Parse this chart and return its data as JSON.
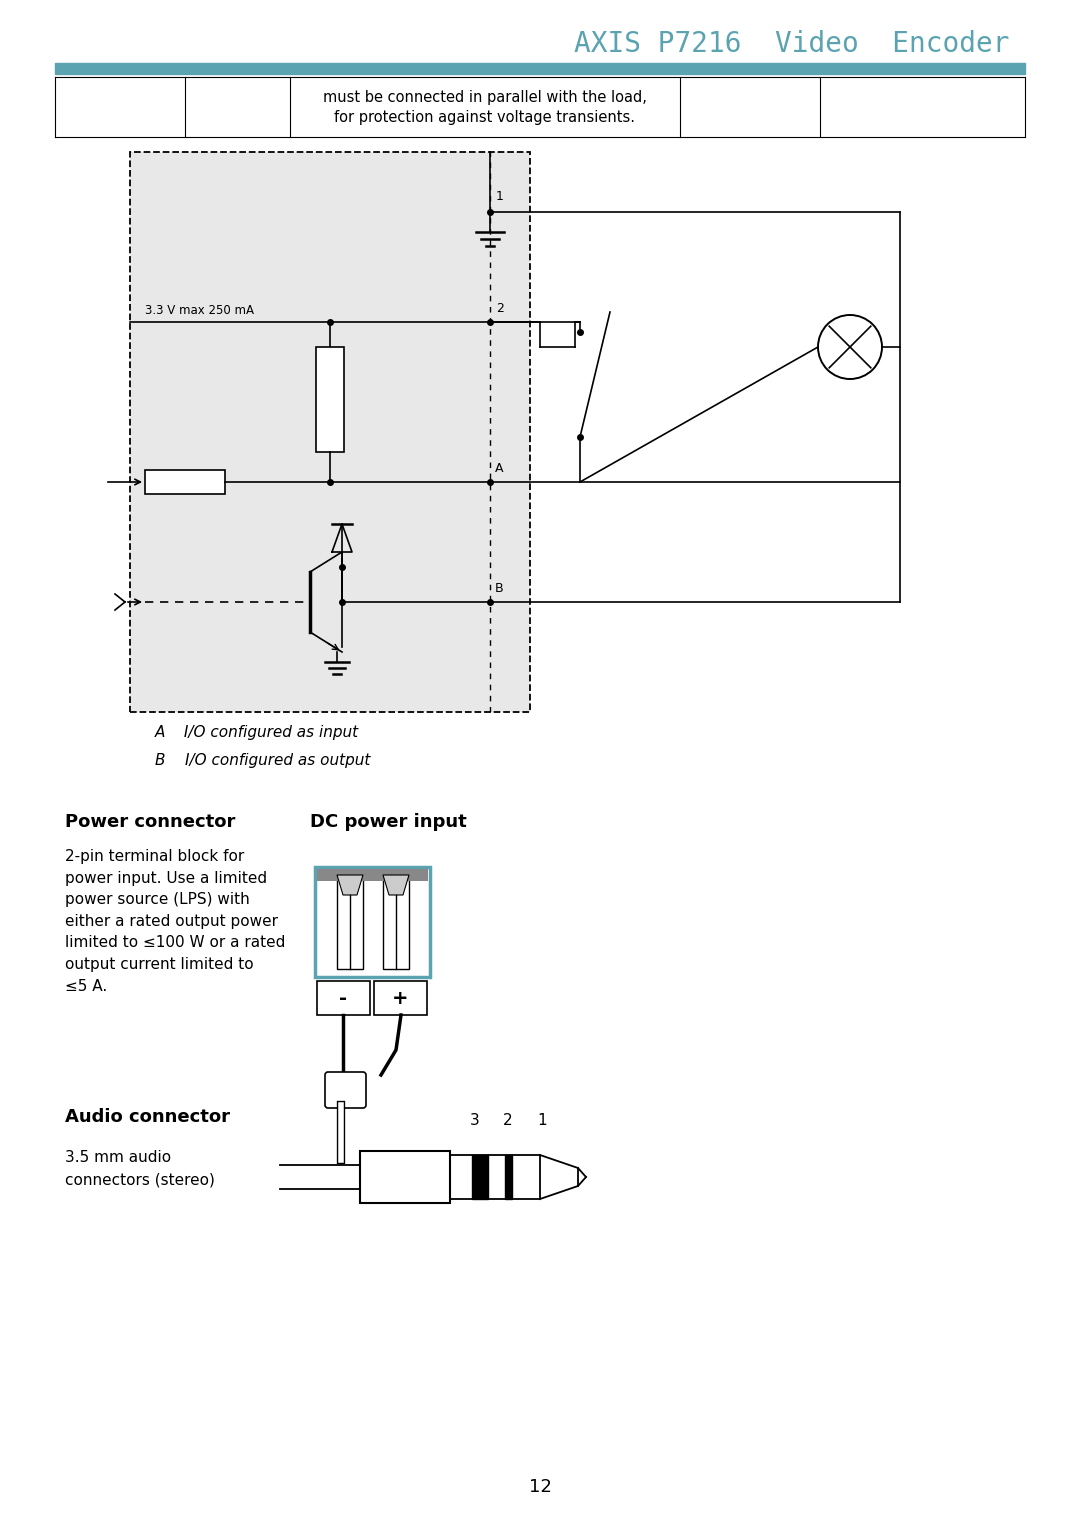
{
  "title": "AXIS P7216  Video  Encoder",
  "title_color": "#5ba3b0",
  "header_bar_color": "#5ba3b0",
  "page_number": "12",
  "io_legend_A": "A    I/O configured as input",
  "io_legend_B": "B    I/O configured as output",
  "power_connector_title": "Power connector",
  "power_connector_subtitle": "DC power input",
  "power_connector_text": "2-pin terminal block for\npower input. Use a limited\npower source (LPS) with\neither a rated output power\nlimited to ≤100 W or a rated\noutput current limited to\n≤5 A.",
  "audio_connector_title": "Audio connector",
  "audio_connector_text": "3.5 mm audio\nconnectors (stereo)",
  "bg_color": "#ffffff",
  "text_color": "#000000",
  "diagram_bg": "#e8e8e8",
  "teal_color": "#5ba3b0"
}
